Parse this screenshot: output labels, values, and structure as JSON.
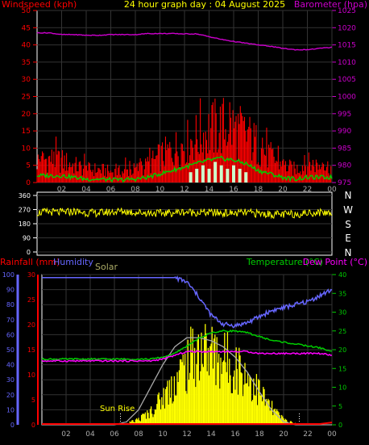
{
  "header": {
    "left_label": "Windspeed (kph)",
    "title": "24 hour graph day : 04 August 2025",
    "right_label": "Barometer (hpa)"
  },
  "compass_labels": [
    "N",
    "W",
    "S",
    "E",
    "N"
  ],
  "bottom_labels": {
    "rainfall": "Rainfall (mm)",
    "humidity": "Humidity",
    "solar": "Solar",
    "temperature": "Temperature (°C)",
    "dewpoint": "Dew Point (°C)",
    "sunrise": "Sun Rise"
  },
  "x_ticks": [
    "02",
    "04",
    "06",
    "08",
    "10",
    "12",
    "14",
    "16",
    "18",
    "20",
    "22",
    "00"
  ],
  "colors": {
    "wind": "#ff0000",
    "wind_avg": "#00cc00",
    "gust_bars": "#ccffcc",
    "barometer": "#cc00cc",
    "direction": "#ffff00",
    "humidity": "#6666ff",
    "temperature": "#00cc00",
    "dewpoint": "#ff00ff",
    "solar": "#ffff00",
    "solar_max": "#aaaaaa",
    "rain": "#ff0000"
  },
  "chart_data": [
    {
      "type": "bar",
      "name": "wind",
      "y_left": {
        "label": "Windspeed (kph)",
        "ticks": [
          0,
          5,
          10,
          15,
          20,
          25,
          30,
          35,
          40,
          45,
          50
        ],
        "range": [
          0,
          50
        ]
      },
      "y_right": {
        "label": "Barometer (hpa)",
        "ticks": [
          975,
          980,
          985,
          990,
          995,
          1000,
          1005,
          1010,
          1015,
          1020,
          1025
        ],
        "range": [
          975,
          1025
        ]
      },
      "x": [
        0,
        1,
        2,
        3,
        4,
        5,
        6,
        7,
        8,
        9,
        10,
        11,
        12,
        13,
        14,
        15,
        16,
        17,
        18,
        19,
        20,
        21,
        22,
        23,
        24
      ],
      "wind_peak_kph": [
        10,
        11,
        10,
        8,
        6,
        6,
        5,
        5,
        6,
        8,
        12,
        15,
        18,
        21,
        24,
        26,
        25,
        22,
        17,
        12,
        8,
        6,
        9,
        8,
        7
      ],
      "wind_avg_kph": [
        2,
        2,
        2,
        1.5,
        1,
        1,
        0.8,
        0.8,
        1,
        1.5,
        2.5,
        3.5,
        4.5,
        5.5,
        6.5,
        7,
        6.5,
        5.5,
        3.5,
        2.5,
        1.5,
        1,
        1.5,
        1.5,
        1.5
      ],
      "barometer_hpa": [
        1018.5,
        1018.5,
        1018,
        1018,
        1017.8,
        1017.8,
        1018,
        1018,
        1018,
        1018.3,
        1018.3,
        1018.3,
        1018.2,
        1018.2,
        1017.4,
        1016.6,
        1016,
        1015.5,
        1015,
        1014.6,
        1014,
        1013.6,
        1013.6,
        1014,
        1014.3
      ],
      "gust_bars": [
        {
          "x": 12.5,
          "kph": 3
        },
        {
          "x": 13.0,
          "kph": 4
        },
        {
          "x": 13.5,
          "kph": 5
        },
        {
          "x": 14.0,
          "kph": 4
        },
        {
          "x": 14.5,
          "kph": 6
        },
        {
          "x": 15.0,
          "kph": 5
        },
        {
          "x": 15.5,
          "kph": 4
        },
        {
          "x": 16.0,
          "kph": 5
        },
        {
          "x": 16.5,
          "kph": 4
        },
        {
          "x": 17.0,
          "kph": 3
        }
      ]
    },
    {
      "type": "line",
      "name": "wind direction",
      "y_ticks": [
        0,
        90,
        180,
        270,
        360
      ],
      "range": [
        0,
        360
      ],
      "x": [
        0,
        1,
        2,
        3,
        4,
        5,
        6,
        7,
        8,
        9,
        10,
        11,
        12,
        13,
        14,
        15,
        16,
        17,
        18,
        19,
        20,
        21,
        22,
        23,
        24
      ],
      "direction_deg": [
        250,
        255,
        252,
        258,
        250,
        248,
        255,
        260,
        252,
        250,
        246,
        250,
        255,
        252,
        250,
        248,
        246,
        250,
        245,
        240,
        238,
        242,
        248,
        252,
        250
      ]
    },
    {
      "type": "line",
      "name": "rain / humidity / solar / temperature",
      "y_humidity": {
        "label": "Humidity",
        "ticks": [
          0,
          10,
          20,
          30,
          40,
          50,
          60,
          70,
          80,
          90,
          100
        ],
        "range": [
          0,
          100
        ]
      },
      "y_rain": {
        "label": "Rainfall (mm)",
        "ticks": [
          0,
          5,
          10,
          15,
          20,
          25,
          30
        ],
        "range": [
          0,
          30
        ]
      },
      "y_temp": {
        "label": "Temperature (°C)",
        "ticks": [
          0,
          5,
          10,
          15,
          20,
          25,
          30,
          35,
          40
        ],
        "range": [
          0,
          40
        ]
      },
      "x": [
        0,
        1,
        2,
        3,
        4,
        5,
        6,
        7,
        8,
        9,
        10,
        11,
        12,
        13,
        14,
        15,
        16,
        17,
        18,
        19,
        20,
        21,
        22,
        23,
        24
      ],
      "humidity_pct": [
        98,
        98,
        98,
        98,
        98,
        98,
        98,
        98,
        98,
        98,
        98,
        98,
        95,
        85,
        73,
        67,
        66,
        68,
        72,
        76,
        78,
        80,
        82,
        86,
        90
      ],
      "temperature_c": [
        17.5,
        17.5,
        17.5,
        17.5,
        17.5,
        17.5,
        17.5,
        17.5,
        17.5,
        17.5,
        18,
        19,
        21,
        23,
        24.5,
        25,
        25,
        24.5,
        23.5,
        22.5,
        22,
        21.5,
        21,
        20.5,
        19.5
      ],
      "dewpoint_c": [
        17,
        17,
        17,
        17,
        17,
        17,
        17,
        17,
        17,
        17,
        17.5,
        18.5,
        19.5,
        19.5,
        19.5,
        19.5,
        19.5,
        19.5,
        19,
        19,
        19,
        19,
        19,
        19,
        18.5
      ],
      "solar_pct": [
        0,
        0,
        0,
        0,
        0,
        0,
        0,
        1,
        5,
        12,
        25,
        40,
        55,
        70,
        65,
        60,
        55,
        45,
        30,
        15,
        5,
        1,
        0,
        0,
        0
      ],
      "solar_max_pct": [
        0,
        0,
        0,
        0,
        0,
        0,
        0,
        2,
        10,
        25,
        40,
        52,
        58,
        58,
        56,
        52,
        45,
        35,
        22,
        10,
        2,
        0,
        0,
        0,
        0
      ],
      "rain_mm": [
        0,
        0,
        0,
        0,
        0,
        0,
        0,
        0,
        0,
        0,
        0,
        0,
        0,
        0,
        0,
        0,
        0,
        0,
        0,
        0,
        0,
        0,
        0,
        0,
        0.3
      ],
      "sunrise_hour": 6.5,
      "sunset_hour": 21.3
    }
  ]
}
